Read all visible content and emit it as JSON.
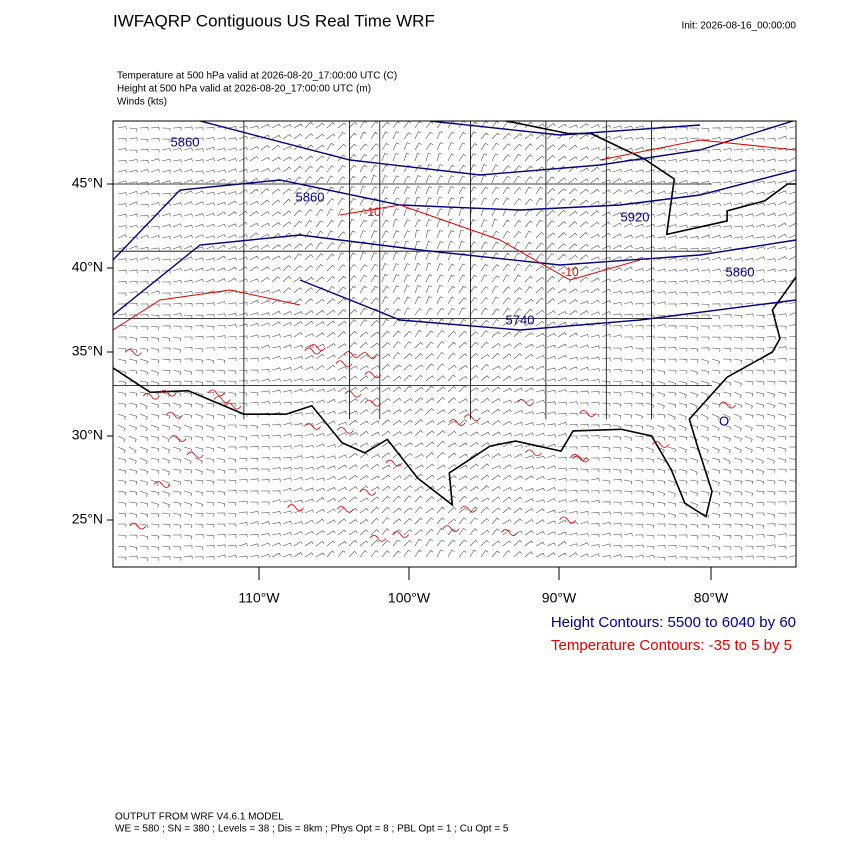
{
  "header": {
    "title": "IWFAQRP Contiguous US Real Time WRF",
    "init": "Init: 2026-08-16_00:00:00",
    "fields": [
      "Temperature at 500 hPa valid at 2026-08-20_17:00:00 UTC   (C)",
      "Height at 500 hPa valid at 2026-08-20_17:00:00 UTC   (m)",
      "Winds   (kts)"
    ]
  },
  "map": {
    "lat_labels": [
      "45°N",
      "40°N",
      "35°N",
      "30°N",
      "25°N"
    ],
    "lon_labels": [
      "110°W",
      "100°W",
      "90°W",
      "80°W"
    ],
    "height_labels": [
      "5860",
      "5860",
      "5740",
      "5920",
      "5860",
      "O"
    ],
    "temp_labels": [
      "-10",
      "-10"
    ]
  },
  "legend": {
    "height": "Height Contours: 5500 to 6040 by 60",
    "temperature": "Temperature Contours: -35 to 5 by 5"
  },
  "footer": [
    "OUTPUT FROM WRF V4.6.1 MODEL",
    "WE = 580 ; SN = 380 ; Levels = 38 ; Dis = 8km ; Phys Opt = 8 ; PBL Opt = 1 ; Cu Opt = 5"
  ]
}
